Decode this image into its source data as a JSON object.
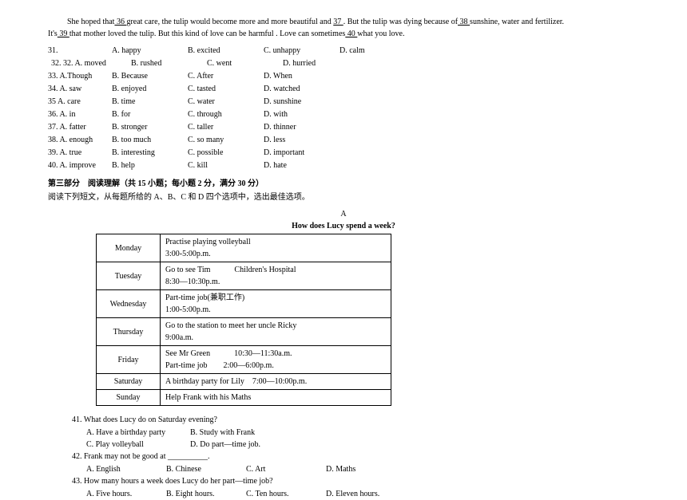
{
  "intro": {
    "line1a": "She hoped that",
    "b36": "   36   ",
    "line1b": "great care, the tulip would become more and more beautiful and ",
    "b37": "   37   ",
    "line1c": ". But the tulip was dying because of",
    "b38": "   38   ",
    "line1d": "sunshine, water and fertilizer.",
    "line2a": "It's",
    "b39": "   39   ",
    "line2b": "that mother loved the tulip. But this kind of love can be harmful . Love can sometimes",
    "b40": "   40   ",
    "line2c": "what you love."
  },
  "choices": [
    {
      "num": "31.",
      "a": "A. happy",
      "b": "B. excited",
      "c": "C. unhappy",
      "d": "D. calm",
      "offset": false
    },
    {
      "num": "32. 32. A. moved",
      "a": "",
      "b": "B. rushed",
      "c": "C. went",
      "d": "D. hurried",
      "offset": true
    },
    {
      "num": "33. A.Though",
      "a": "",
      "b": "B. Because",
      "c": "C. After",
      "d": "D. When",
      "offset": false
    },
    {
      "num": "34. A. saw",
      "a": "",
      "b": "B. enjoyed",
      "c": "C. tasted",
      "d": "D. watched",
      "offset": false
    },
    {
      "num": "35 A. care",
      "a": "",
      "b": "B. time",
      "c": "C. water",
      "d": "D. sunshine",
      "offset": false
    },
    {
      "num": "36. A. in",
      "a": "",
      "b": "B. for",
      "c": "C. through",
      "d": "D. with",
      "offset": false
    },
    {
      "num": "37. A. fatter",
      "a": "",
      "b": "B. stronger",
      "c": "C. taller",
      "d": "D. thinner",
      "offset": false
    },
    {
      "num": "38. A. enough",
      "a": "",
      "b": "B. too much",
      "c": "C. so many",
      "d": "D. less",
      "offset": false
    },
    {
      "num": "39. A. true",
      "a": "",
      "b": "B. interesting",
      "c": "C. possible",
      "d": "D. important",
      "offset": false
    },
    {
      "num": "40. A. improve",
      "a": "",
      "b": "B. help",
      "c": "C. kill",
      "d": "D. hate",
      "offset": false
    }
  ],
  "section": {
    "title": "第三部分　阅读理解（共 15 小题；每小题 2 分，满分 30 分）",
    "sub": "阅读下列短文，从每题所给的 A、B、C 和 D 四个选项中，选出最佳选项。",
    "label": "A",
    "tableTitle": "How does Lucy spend a week?"
  },
  "table": [
    {
      "day": "Monday",
      "content": "Practise playing volleyball\n3:00-5:00p.m."
    },
    {
      "day": "Tuesday",
      "content": "Go to see Tim　　　Children's Hospital\n8:30—10:30p.m."
    },
    {
      "day": "Wednesday",
      "content": "Part-time job(兼职工作)\n1:00-5:00p.m."
    },
    {
      "day": "Thursday",
      "content": "Go to the station to meet her uncle Ricky\n9:00a.m."
    },
    {
      "day": "Friday",
      "content": "See Mr Green　　　10:30—11:30a.m.\nPart-time job　　2:00—6:00p.m."
    },
    {
      "day": "Saturday",
      "content": "A birthday party for Lily　7:00—10:00p.m."
    },
    {
      "day": "Sunday",
      "content": "Help Frank with his Maths"
    }
  ],
  "questions": {
    "q41": {
      "stem": "41. What does Lucy do on Saturday evening?",
      "a": "A. Have a birthday party",
      "b": "B. Study with Frank",
      "c": "C. Play volleyball",
      "d": "D. Do part—time job."
    },
    "q42": {
      "stem": "42. Frank may not be good at __________.",
      "a": "A. English",
      "b": "B. Chinese",
      "c": "C. Art",
      "d": "D. Maths"
    },
    "q43": {
      "stem": "43. How many hours a week does Lucy do her part—time job?",
      "a": "A. Five hours.",
      "b": "B. Eight hours.",
      "c": "C. Ten hours.",
      "d": "D. Eleven hours."
    }
  }
}
